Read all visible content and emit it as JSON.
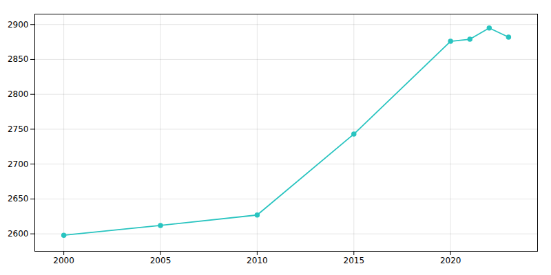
{
  "chart_data": {
    "type": "line",
    "x": [
      2000,
      2005,
      2010,
      2015,
      2020,
      2021,
      2022,
      2023
    ],
    "values": [
      2598,
      2612,
      2627,
      2743,
      2876,
      2879,
      2895,
      2882
    ],
    "color": "#29c4c0",
    "marker": "circle",
    "xlim": [
      1998.5,
      2024.5
    ],
    "ylim": [
      2575,
      2915
    ],
    "xticks": [
      2000,
      2005,
      2010,
      2015,
      2020
    ],
    "yticks": [
      2600,
      2650,
      2700,
      2750,
      2800,
      2850,
      2900
    ],
    "grid": true
  }
}
